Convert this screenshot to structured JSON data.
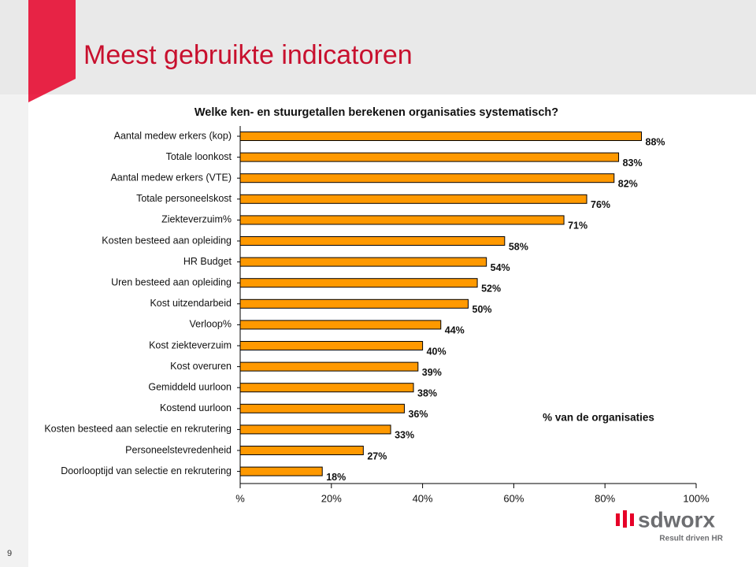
{
  "header": {
    "title": "Meest gebruikte indicatoren"
  },
  "chart_data": {
    "type": "bar",
    "orientation": "horizontal",
    "title": "Welke ken- en stuurgetallen berekenen organisaties systematisch?",
    "annotation": "% van de organisaties",
    "categories": [
      "Aantal medew erkers (kop)",
      "Totale loonkost",
      "Aantal medew erkers (VTE)",
      "Totale personeelskost",
      "Ziekteverzuim%",
      "Kosten besteed aan opleiding",
      "HR Budget",
      "Uren besteed aan opleiding",
      "Kost uitzendarbeid",
      "Verloop%",
      "Kost ziekteverzuim",
      "Kost overuren",
      "Gemiddeld uurloon",
      "Kostend uurloon",
      "Kosten besteed aan selectie en rekrutering",
      "Personeelstevredenheid",
      "Doorlooptijd van selectie en rekrutering"
    ],
    "values": [
      88,
      83,
      82,
      76,
      71,
      58,
      54,
      52,
      50,
      44,
      40,
      39,
      38,
      36,
      33,
      27,
      18
    ],
    "value_labels": [
      "88%",
      "83%",
      "82%",
      "76%",
      "71%",
      "58%",
      "54%",
      "52%",
      "50%",
      "44%",
      "40%",
      "39%",
      "38%",
      "36%",
      "33%",
      "27%",
      "18%"
    ],
    "color": "#ff9900",
    "xlim": [
      0,
      100
    ],
    "xticks": [
      {
        "value": 0,
        "label": "%"
      },
      {
        "value": 20,
        "label": "20%"
      },
      {
        "value": 40,
        "label": "40%"
      },
      {
        "value": 60,
        "label": "60%"
      },
      {
        "value": 80,
        "label": "80%"
      },
      {
        "value": 100,
        "label": "100%"
      }
    ]
  },
  "footer": {
    "logo": "sdworx",
    "tagline": "Result driven HR",
    "page": "9"
  }
}
